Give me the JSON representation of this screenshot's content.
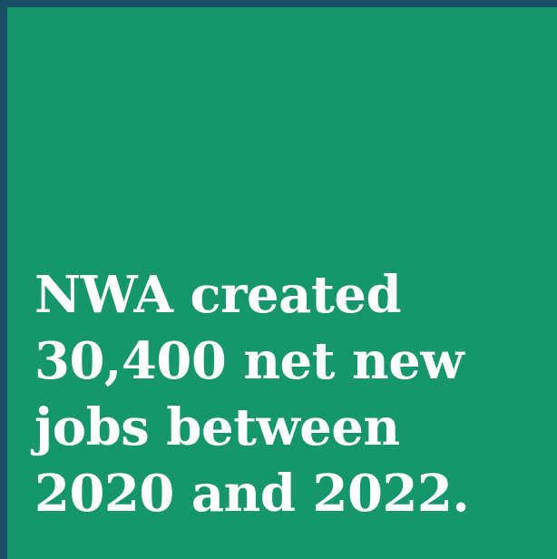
{
  "card": {
    "background_color": "#16966b",
    "frame_color": "#1a4e66",
    "text_color": "#ffffff",
    "lines": [
      "NWA created",
      "30,400 net new",
      "jobs between",
      "2020 and 2022."
    ]
  }
}
